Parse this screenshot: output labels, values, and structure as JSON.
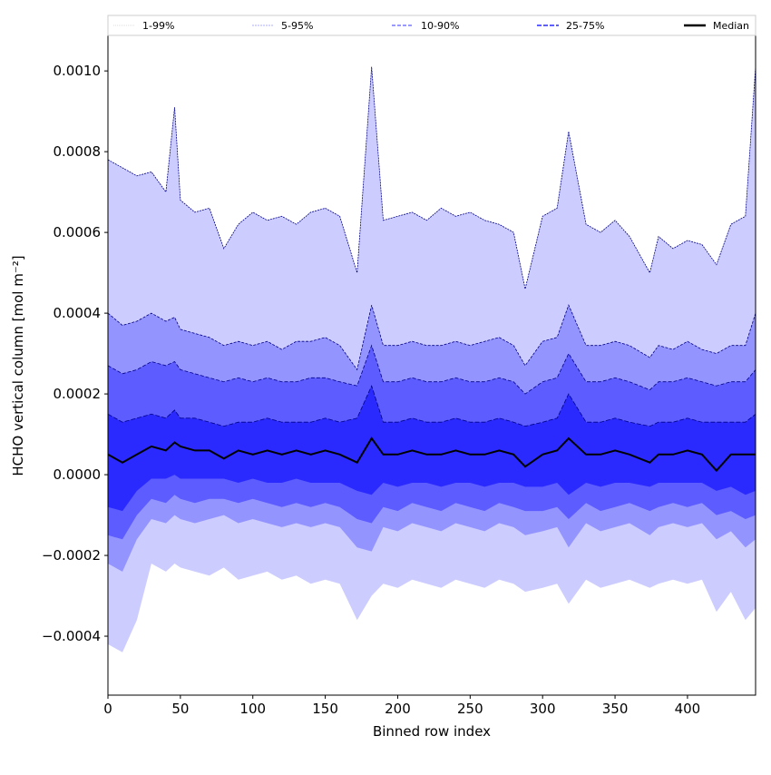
{
  "chart_data": {
    "type": "area",
    "title": "",
    "xlabel": "Binned row index",
    "ylabel": "HCHO vertical column [mol m⁻²]",
    "xlim": [
      0,
      447
    ],
    "ylim": [
      -0.000546,
      0.001088
    ],
    "xticks": [
      0,
      50,
      100,
      150,
      200,
      250,
      300,
      350,
      400
    ],
    "xtick_labels": [
      "0",
      "50",
      "100",
      "150",
      "200",
      "250",
      "300",
      "350",
      "400"
    ],
    "yticks": [
      -0.0004,
      -0.0002,
      0.0,
      0.0002,
      0.0004,
      0.0006,
      0.0008,
      0.001
    ],
    "ytick_labels": [
      "−0.0004",
      "−0.0002",
      "0.0000",
      "0.0002",
      "0.0004",
      "0.0006",
      "0.0008",
      "0.0010"
    ],
    "legend": {
      "placement": "top",
      "entries": [
        "1-99%",
        "5-95%",
        "10-90%",
        "25-75%",
        "Median"
      ]
    },
    "colors": {
      "band_1_99": "#ccccff",
      "band_5_95": "#9494ff",
      "band_10_90": "#5c5cff",
      "band_25_75": "#2a2aff",
      "median": "#000000",
      "edge": "#00008b"
    },
    "values_scale": 0.0001,
    "x": [
      0,
      10,
      20,
      30,
      40,
      46,
      50,
      60,
      70,
      80,
      90,
      100,
      110,
      120,
      130,
      140,
      150,
      160,
      172,
      182,
      190,
      200,
      210,
      220,
      230,
      240,
      250,
      260,
      270,
      280,
      288,
      300,
      310,
      318,
      330,
      340,
      350,
      360,
      374,
      380,
      390,
      400,
      410,
      420,
      430,
      440,
      447
    ],
    "series": [
      {
        "name": "p1",
        "values": [
          -4.2,
          -4.4,
          -3.6,
          -2.2,
          -2.4,
          -2.2,
          -2.3,
          -2.4,
          -2.5,
          -2.3,
          -2.6,
          -2.5,
          -2.4,
          -2.6,
          -2.5,
          -2.7,
          -2.6,
          -2.7,
          -3.6,
          -3.0,
          -2.7,
          -2.8,
          -2.6,
          -2.7,
          -2.8,
          -2.6,
          -2.7,
          -2.8,
          -2.6,
          -2.7,
          -2.9,
          -2.8,
          -2.7,
          -3.2,
          -2.6,
          -2.8,
          -2.7,
          -2.6,
          -2.8,
          -2.7,
          -2.6,
          -2.7,
          -2.6,
          -3.4,
          -2.9,
          -3.6,
          -3.3
        ]
      },
      {
        "name": "p5",
        "values": [
          -2.2,
          -2.4,
          -1.6,
          -1.1,
          -1.2,
          -1.0,
          -1.1,
          -1.2,
          -1.1,
          -1.0,
          -1.2,
          -1.1,
          -1.2,
          -1.3,
          -1.2,
          -1.3,
          -1.2,
          -1.3,
          -1.8,
          -1.9,
          -1.3,
          -1.4,
          -1.2,
          -1.3,
          -1.4,
          -1.2,
          -1.3,
          -1.4,
          -1.2,
          -1.3,
          -1.5,
          -1.4,
          -1.3,
          -1.8,
          -1.2,
          -1.4,
          -1.3,
          -1.2,
          -1.5,
          -1.3,
          -1.2,
          -1.3,
          -1.2,
          -1.6,
          -1.4,
          -1.8,
          -1.6
        ]
      },
      {
        "name": "p10",
        "values": [
          -1.5,
          -1.6,
          -1.0,
          -0.6,
          -0.7,
          -0.5,
          -0.6,
          -0.7,
          -0.6,
          -0.6,
          -0.7,
          -0.6,
          -0.7,
          -0.8,
          -0.7,
          -0.8,
          -0.7,
          -0.8,
          -1.1,
          -1.2,
          -0.8,
          -0.9,
          -0.7,
          -0.8,
          -0.9,
          -0.7,
          -0.8,
          -0.9,
          -0.7,
          -0.8,
          -0.9,
          -0.9,
          -0.8,
          -1.1,
          -0.7,
          -0.9,
          -0.8,
          -0.7,
          -0.9,
          -0.8,
          -0.7,
          -0.8,
          -0.7,
          -1.0,
          -0.9,
          -1.1,
          -1.0
        ]
      },
      {
        "name": "p25",
        "values": [
          -0.8,
          -0.9,
          -0.4,
          -0.1,
          -0.1,
          0.0,
          -0.1,
          -0.1,
          -0.1,
          -0.1,
          -0.2,
          -0.1,
          -0.2,
          -0.2,
          -0.1,
          -0.2,
          -0.2,
          -0.2,
          -0.4,
          -0.5,
          -0.2,
          -0.3,
          -0.2,
          -0.2,
          -0.3,
          -0.2,
          -0.2,
          -0.3,
          -0.2,
          -0.2,
          -0.3,
          -0.3,
          -0.2,
          -0.5,
          -0.2,
          -0.3,
          -0.2,
          -0.2,
          -0.3,
          -0.2,
          -0.2,
          -0.2,
          -0.2,
          -0.4,
          -0.3,
          -0.5,
          -0.4
        ]
      },
      {
        "name": "Median",
        "values": [
          0.5,
          0.3,
          0.5,
          0.7,
          0.6,
          0.8,
          0.7,
          0.6,
          0.6,
          0.4,
          0.6,
          0.5,
          0.6,
          0.5,
          0.6,
          0.5,
          0.6,
          0.5,
          0.3,
          0.9,
          0.5,
          0.5,
          0.6,
          0.5,
          0.5,
          0.6,
          0.5,
          0.5,
          0.6,
          0.5,
          0.2,
          0.5,
          0.6,
          0.9,
          0.5,
          0.5,
          0.6,
          0.5,
          0.3,
          0.5,
          0.5,
          0.6,
          0.5,
          0.1,
          0.5,
          0.5,
          0.5
        ]
      },
      {
        "name": "p75",
        "values": [
          1.5,
          1.3,
          1.4,
          1.5,
          1.4,
          1.6,
          1.4,
          1.4,
          1.3,
          1.2,
          1.3,
          1.3,
          1.4,
          1.3,
          1.3,
          1.3,
          1.4,
          1.3,
          1.4,
          2.2,
          1.3,
          1.3,
          1.4,
          1.3,
          1.3,
          1.4,
          1.3,
          1.3,
          1.4,
          1.3,
          1.2,
          1.3,
          1.4,
          2.0,
          1.3,
          1.3,
          1.4,
          1.3,
          1.2,
          1.3,
          1.3,
          1.4,
          1.3,
          1.3,
          1.3,
          1.3,
          1.5
        ]
      },
      {
        "name": "p90",
        "values": [
          2.7,
          2.5,
          2.6,
          2.8,
          2.7,
          2.8,
          2.6,
          2.5,
          2.4,
          2.3,
          2.4,
          2.3,
          2.4,
          2.3,
          2.3,
          2.4,
          2.4,
          2.3,
          2.2,
          3.2,
          2.3,
          2.3,
          2.4,
          2.3,
          2.3,
          2.4,
          2.3,
          2.3,
          2.4,
          2.3,
          2.0,
          2.3,
          2.4,
          3.0,
          2.3,
          2.3,
          2.4,
          2.3,
          2.1,
          2.3,
          2.3,
          2.4,
          2.3,
          2.2,
          2.3,
          2.3,
          2.6
        ]
      },
      {
        "name": "p95",
        "values": [
          4.0,
          3.7,
          3.8,
          4.0,
          3.8,
          3.9,
          3.6,
          3.5,
          3.4,
          3.2,
          3.3,
          3.2,
          3.3,
          3.1,
          3.3,
          3.3,
          3.4,
          3.2,
          2.6,
          4.2,
          3.2,
          3.2,
          3.3,
          3.2,
          3.2,
          3.3,
          3.2,
          3.3,
          3.4,
          3.2,
          2.7,
          3.3,
          3.4,
          4.2,
          3.2,
          3.2,
          3.3,
          3.2,
          2.9,
          3.2,
          3.1,
          3.3,
          3.1,
          3.0,
          3.2,
          3.2,
          4.0
        ]
      },
      {
        "name": "p99",
        "values": [
          7.8,
          7.6,
          7.4,
          7.5,
          7.0,
          9.1,
          6.8,
          6.5,
          6.6,
          5.6,
          6.2,
          6.5,
          6.3,
          6.4,
          6.2,
          6.5,
          6.6,
          6.4,
          5.0,
          10.1,
          6.3,
          6.4,
          6.5,
          6.3,
          6.6,
          6.4,
          6.5,
          6.3,
          6.2,
          6.0,
          4.6,
          6.4,
          6.6,
          8.5,
          6.2,
          6.0,
          6.3,
          5.9,
          5.0,
          5.9,
          5.6,
          5.8,
          5.7,
          5.2,
          6.2,
          6.4,
          10.1
        ]
      }
    ]
  }
}
